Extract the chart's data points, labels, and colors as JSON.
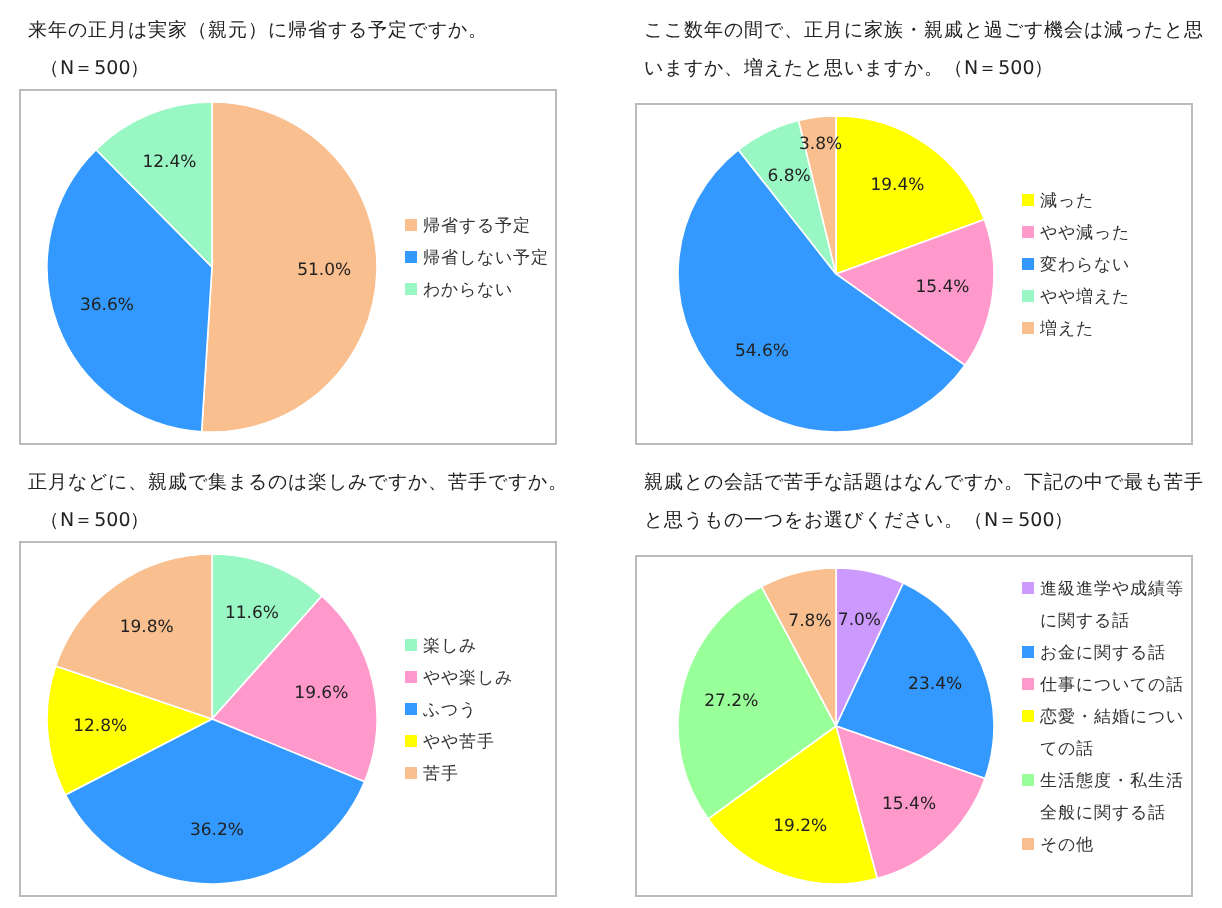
{
  "chart_data": [
    {
      "type": "pie",
      "title": "来年の正月は実家（親元）に帰省する予定ですか。",
      "subtitle": "（N＝500）",
      "categories": [
        "帰省する予定",
        "帰省しない予定",
        "わからない"
      ],
      "values": [
        51.0,
        36.6,
        12.4
      ],
      "value_labels": [
        "51.0%",
        "36.6%",
        "12.4%"
      ],
      "colors": [
        "#f9bf8f",
        "#3399ff",
        "#99f7c4"
      ],
      "legend": "right"
    },
    {
      "type": "pie",
      "title": "ここ数年の間で、正月に家族・親戚と過ごす機会は減ったと思いますか、増えたと思いますか。（N＝500）",
      "categories": [
        "減った",
        "やや減った",
        "変わらない",
        "やや増えた",
        "増えた"
      ],
      "values": [
        19.4,
        15.4,
        54.6,
        6.8,
        3.8
      ],
      "value_labels": [
        "19.4%",
        "15.4%",
        "54.6%",
        "6.8%",
        "3.8%"
      ],
      "colors": [
        "#ffff00",
        "#ff99cc",
        "#3399ff",
        "#99f7c4",
        "#f9bf8f"
      ],
      "legend": "right"
    },
    {
      "type": "pie",
      "title": "正月などに、親戚で集まるのは楽しみですか、苦手ですか。",
      "subtitle": "（N＝500）",
      "categories": [
        "楽しみ",
        "やや楽しみ",
        "ふつう",
        "やや苦手",
        "苦手"
      ],
      "values": [
        11.6,
        19.6,
        36.2,
        12.8,
        19.8
      ],
      "value_labels": [
        "11.6%",
        "19.6%",
        "36.2%",
        "12.8%",
        "19.8%"
      ],
      "colors": [
        "#99f7c4",
        "#ff99cc",
        "#3399ff",
        "#ffff00",
        "#f9bf8f"
      ],
      "legend": "right"
    },
    {
      "type": "pie",
      "title": "親戚との会話で苦手な話題はなんですか。下記の中で最も苦手と思うもの一つをお選びください。（N＝500）",
      "categories": [
        "進級進学や成績等に関する話",
        "お金に関する話",
        "仕事についての話",
        "恋愛・結婚についての話",
        "生活態度・私生活全般に関する話",
        "その他"
      ],
      "values": [
        7.0,
        23.4,
        15.4,
        19.2,
        27.2,
        7.8
      ],
      "value_labels": [
        "7.0%",
        "23.4%",
        "15.4%",
        "19.2%",
        "27.2%",
        "7.8%"
      ],
      "colors": [
        "#cc99ff",
        "#3399ff",
        "#ff99cc",
        "#ffff00",
        "#99ff99",
        "#f9bf8f"
      ],
      "legend": "right"
    }
  ]
}
